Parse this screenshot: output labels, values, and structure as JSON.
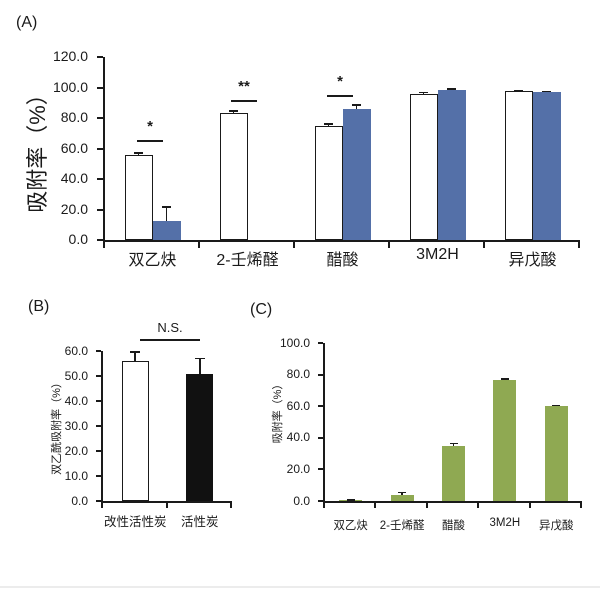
{
  "chart_data": [
    {
      "id": "A",
      "type": "bar",
      "panel_label": "(A)",
      "ylabel": "吸附率（%）",
      "ylim": [
        0,
        120
      ],
      "ytick_step": 20,
      "ytick_labels": [
        "0.0",
        "20.0",
        "40.0",
        "60.0",
        "80.0",
        "100.0",
        "120.0"
      ],
      "grid": false,
      "legend": "none",
      "categories": [
        "双乙炔",
        "2-壬烯醛",
        "醋酸",
        "3M2H",
        "异戊酸"
      ],
      "series": [
        {
          "name": "white-bar",
          "color": "#ffffff",
          "border": "#1a1a1a",
          "values": [
            56.0,
            83.0,
            75.0,
            96.0,
            97.5
          ],
          "errors": [
            1.0,
            1.5,
            1.0,
            0.8,
            0.5
          ]
        },
        {
          "name": "blue-bar",
          "color": "#5470a8",
          "border": "none",
          "values": [
            12.5,
            0,
            86.0,
            98.5,
            97.0
          ],
          "errors": [
            9.0,
            0,
            2.5,
            0.5,
            0.5
          ]
        }
      ],
      "annotations": [
        {
          "text": "*",
          "category": "双乙炔"
        },
        {
          "text": "**",
          "category": "2-壬烯醛"
        },
        {
          "text": "*",
          "category": "醋酸"
        }
      ]
    },
    {
      "id": "B",
      "type": "bar",
      "panel_label": "(B)",
      "ylabel": "双乙酰吸附率（%）",
      "ylim": [
        0,
        60
      ],
      "ytick_step": 10,
      "ytick_labels": [
        "0.0",
        "10.0",
        "20.0",
        "30.0",
        "40.0",
        "50.0",
        "60.0"
      ],
      "grid": false,
      "legend": "none",
      "categories": [
        "改性活性炭",
        "活性炭"
      ],
      "series": [
        {
          "name": "charcoal-bars",
          "colors": [
            "#ffffff",
            "#111111"
          ],
          "borders": [
            "#1a1a1a",
            "#111111"
          ],
          "values": [
            56.0,
            51.0
          ],
          "errors": [
            3.5,
            6.0
          ]
        }
      ],
      "annotations": [
        {
          "text": "N.S.",
          "category": "改性活性炭 vs 活性炭"
        }
      ]
    },
    {
      "id": "C",
      "type": "bar",
      "panel_label": "(C)",
      "ylabel": "吸附率（%）",
      "ylim": [
        0,
        100
      ],
      "ytick_step": 20,
      "ytick_labels": [
        "0.0",
        "20.0",
        "40.0",
        "60.0",
        "80.0",
        "100.0"
      ],
      "grid": false,
      "legend": "none",
      "categories": [
        "双乙炔",
        "2-壬烯醛",
        "醋酸",
        "3M2H",
        "异戊酸"
      ],
      "series": [
        {
          "name": "green-bar",
          "color": "#8fa952",
          "border": "none",
          "values": [
            0.5,
            3.5,
            35.0,
            76.5,
            60.0
          ],
          "errors": [
            0.3,
            2.0,
            1.5,
            0.7,
            0.5
          ]
        }
      ],
      "annotations": []
    }
  ],
  "colors": {
    "axis": "#1a1a1a",
    "blue_series": "#5470a8",
    "green_series": "#8fa952",
    "black_bar": "#111111",
    "white_bar": "#ffffff",
    "divider": "#ececec"
  }
}
